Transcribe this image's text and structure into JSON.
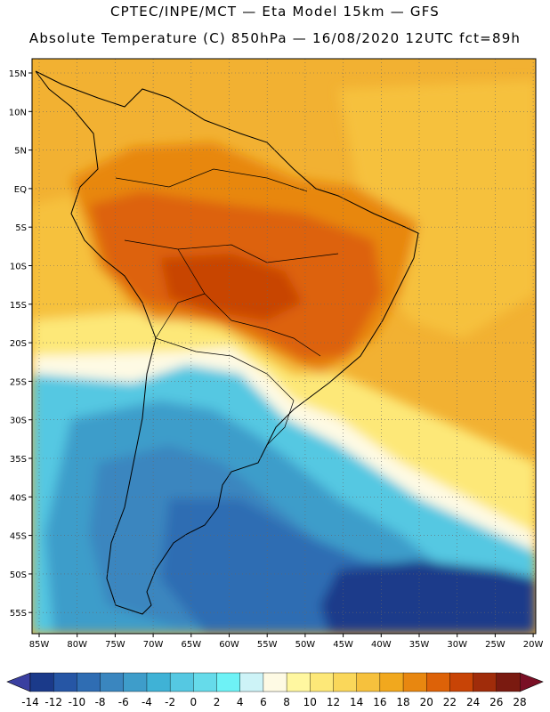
{
  "header": {
    "line1": "CPTEC/INPE/MCT —  Eta Model 15km — GFS",
    "line2": "Absolute Temperature (C) 850hPa — 16/08/2020 12UTC fct=89h"
  },
  "axes": {
    "lon_labels": [
      "85W",
      "80W",
      "75W",
      "70W",
      "65W",
      "60W",
      "55W",
      "50W",
      "45W",
      "40W",
      "35W",
      "30W",
      "25W",
      "20W"
    ],
    "lat_labels": [
      "15N",
      "10N",
      "5N",
      "EQ",
      "5S",
      "10S",
      "15S",
      "20S",
      "25S",
      "30S",
      "35S",
      "40S",
      "45S",
      "50S",
      "55S"
    ]
  },
  "colorbar": {
    "colors": [
      "#1b3a8a",
      "#2656a5",
      "#2f6db3",
      "#3a86bf",
      "#3e9dca",
      "#3fb2d6",
      "#55c8e2",
      "#66dbea",
      "#6ef2f6",
      "#cdf3f7",
      "#fefae4",
      "#fff7a0",
      "#fde878",
      "#fad75a",
      "#f6c13d",
      "#f1a81e",
      "#e88710",
      "#dd6208",
      "#c84406",
      "#a02c0a",
      "#7a1a10"
    ],
    "labels": [
      "-14",
      "-12",
      "-10",
      "-8",
      "-6",
      "-4",
      "-2",
      "0",
      "2",
      "4",
      "6",
      "8",
      "10",
      "12",
      "14",
      "16",
      "18",
      "20",
      "22",
      "24",
      "26",
      "28"
    ],
    "under_color": "#3a3fa0",
    "over_color": "#7a0f25"
  },
  "field": {
    "background": "#f2b132",
    "regions": [
      {
        "name": "warm-atlantic-belt",
        "color": "#f6c13d"
      },
      {
        "name": "amazon-hot",
        "color": "#e88710"
      },
      {
        "name": "central-brazil-hot",
        "color": "#dd6208"
      },
      {
        "name": "mato-grosso-hotspot",
        "color": "#c84406"
      },
      {
        "name": "pacific-warm",
        "color": "#f6c13d"
      },
      {
        "name": "subtropical-band",
        "color": "#fde878"
      },
      {
        "name": "cold-front-edge",
        "color": "#fefae4"
      },
      {
        "name": "cold-mass",
        "color": "#55c8e2"
      },
      {
        "name": "cold-core",
        "color": "#3e9dca"
      },
      {
        "name": "south-atlantic-cold",
        "color": "#2f6db3"
      },
      {
        "name": "deep-cold",
        "color": "#1b3a8a"
      },
      {
        "name": "patagonia-cold",
        "color": "#3a86bf"
      }
    ]
  }
}
